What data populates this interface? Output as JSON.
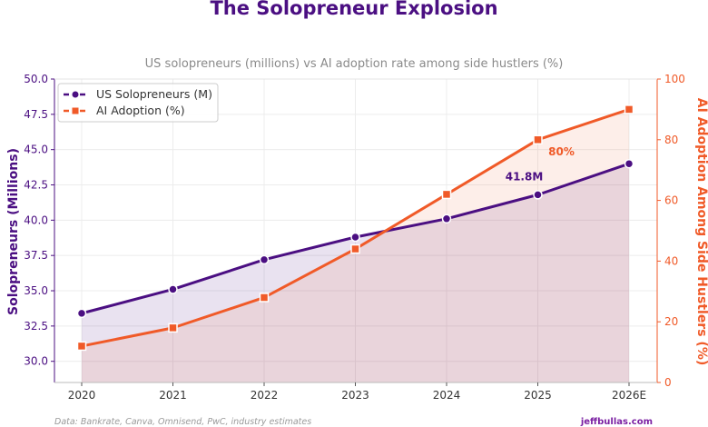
{
  "chart_data": {
    "type": "line",
    "title": "The Solopreneur Explosion",
    "subtitle": "US solopreneurs (millions) vs AI adoption rate among side hustlers (%)",
    "categories": [
      "2020",
      "2021",
      "2022",
      "2023",
      "2024",
      "2025",
      "2026E"
    ],
    "series": [
      {
        "name": "US Solopreneurs (M)",
        "axis": "left",
        "color": "#4b0f82",
        "marker": "circle",
        "values": [
          33.4,
          35.1,
          37.2,
          38.8,
          40.1,
          41.8,
          44.0
        ]
      },
      {
        "name": "AI Adoption (%)",
        "axis": "right",
        "color": "#f05a28",
        "marker": "square",
        "values": [
          12,
          18,
          28,
          44,
          62,
          80,
          90
        ]
      }
    ],
    "y_left": {
      "label": "Solopreneurs (Millions)",
      "ylim": [
        28.5,
        50.0
      ],
      "ticks": [
        "30.0",
        "32.5",
        "35.0",
        "37.5",
        "40.0",
        "42.5",
        "45.0",
        "47.5",
        "50.0"
      ]
    },
    "y_right": {
      "label": "AI Adoption Among Side Hustlers (%)",
      "ylim": [
        0,
        100
      ],
      "ticks": [
        "0",
        "20",
        "40",
        "60",
        "80",
        "100"
      ]
    },
    "annotations": [
      {
        "text": "41.8M",
        "series": 0,
        "category": "2025"
      },
      {
        "text": "80%",
        "series": 1,
        "category": "2025"
      }
    ],
    "grid": true,
    "legend_position": "top-left",
    "footer": {
      "source": "Data: Bankrate, Canva, Omnisend, PwC, industry estimates",
      "brand": "jeffbullas.com"
    }
  }
}
